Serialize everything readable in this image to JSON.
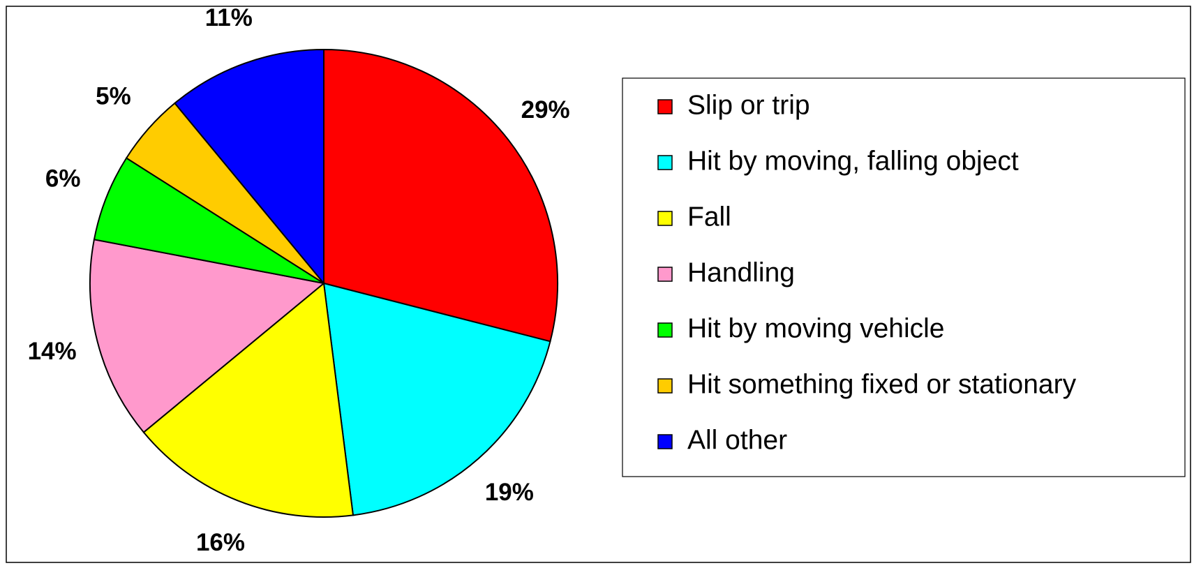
{
  "chart_data": {
    "type": "pie",
    "categories": [
      "Slip or trip",
      "Hit by moving, falling object",
      "Fall",
      "Handling",
      "Hit by moving vehicle",
      "Hit something fixed or stationary",
      "All other"
    ],
    "values": [
      29,
      19,
      16,
      14,
      6,
      5,
      11
    ],
    "value_labels": [
      "29%",
      "19%",
      "16%",
      "14%",
      "6%",
      "5%",
      "11%"
    ],
    "colors": [
      "#ff0000",
      "#00ffff",
      "#ffff00",
      "#ff99cc",
      "#00ff00",
      "#ffcc00",
      "#0000ff"
    ],
    "legend": "right"
  }
}
